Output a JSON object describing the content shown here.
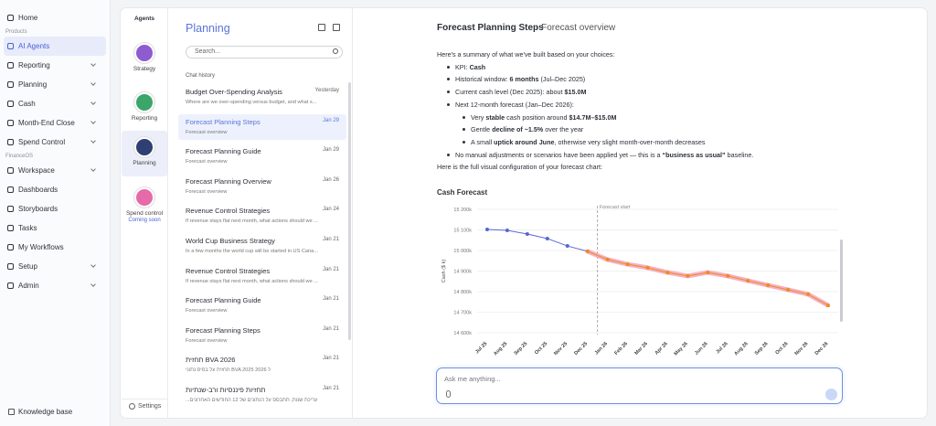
{
  "sidebar": {
    "nav": [
      {
        "label": "Home",
        "expandable": false
      },
      {
        "section": "Products"
      },
      {
        "label": "AI Agents",
        "expandable": false,
        "active": true
      },
      {
        "label": "Reporting",
        "expandable": true
      },
      {
        "label": "Planning",
        "expandable": true
      },
      {
        "label": "Cash",
        "expandable": true
      },
      {
        "label": "Month-End Close",
        "expandable": true
      },
      {
        "label": "Spend Control",
        "expandable": true
      },
      {
        "section": "FinanceOS"
      },
      {
        "label": "Workspace",
        "expandable": true
      },
      {
        "label": "Dashboards",
        "expandable": false
      },
      {
        "label": "Storyboards",
        "expandable": false
      },
      {
        "label": "Tasks",
        "expandable": false
      },
      {
        "label": "My Workflows",
        "expandable": false
      },
      {
        "label": "Setup",
        "expandable": true
      },
      {
        "label": "Admin",
        "expandable": true
      }
    ],
    "footer": "Knowledge base"
  },
  "agents": {
    "title": "Agents",
    "items": [
      {
        "label": "Strategy",
        "avatar_color": "#8e5bd0"
      },
      {
        "label": "Reporting",
        "avatar_color": "#3aa66a"
      },
      {
        "label": "Planning",
        "avatar_color": "#2f3f73",
        "active": true
      },
      {
        "label": "Spend control",
        "avatar_color": "#e66aa8",
        "badge": "Coming soon"
      }
    ],
    "settings": "Settings"
  },
  "chat_list": {
    "title": "Planning",
    "search_placeholder": "Search...",
    "section": "Chat history",
    "items": [
      {
        "title": "Budget Over-Spending Analysis",
        "date": "Yesterday",
        "preview": "Where are we over-spending versus budget, and what s..."
      },
      {
        "title": "Forecast Planning Steps",
        "date": "Jan 29",
        "preview": "Forecast overview",
        "active": true
      },
      {
        "title": "Forecast Planning Guide",
        "date": "Jan 29",
        "preview": "Forecast overview"
      },
      {
        "title": "Forecast Planning Overview",
        "date": "Jan 26",
        "preview": "Forecast overview"
      },
      {
        "title": "Revenue Control Strategies",
        "date": "Jan 24",
        "preview": "If revenue stays flat next month, what actions should we ..."
      },
      {
        "title": "World Cup Business Strategy",
        "date": "Jan 21",
        "preview": "In a few months the world cup will be started in US Cana..."
      },
      {
        "title": "Revenue Control Strategies",
        "date": "Jan 21",
        "preview": "If revenue stays flat next month, what actions should we ..."
      },
      {
        "title": "Forecast Planning Guide",
        "date": "Jan 21",
        "preview": "Forecast overview"
      },
      {
        "title": "Forecast Planning Steps",
        "date": "Jan 21",
        "preview": "Forecast overview"
      },
      {
        "title": "תחזית BVA 2026",
        "date": "Jan 21",
        "preview": "תחזית על בסיס נתוני BVA 2025 ל 2026"
      },
      {
        "title": "תחזיות פיננסיות ורב-שנתיות",
        "date": "Jan 21",
        "preview": "...עריכת שנות, תתבסס על הנתונים של 12 החודשים האחרונים"
      }
    ]
  },
  "main": {
    "title": "Forecast Planning Steps",
    "subtitle": "- Forecast overview",
    "summary": [
      {
        "level": 0,
        "runs": [
          {
            "text": "Here's a summary of what we've built based on your choices:"
          }
        ]
      },
      {
        "level": 1,
        "runs": [
          {
            "text": "KPI: "
          },
          {
            "text": "Cash",
            "bold": true
          }
        ]
      },
      {
        "level": 1,
        "runs": [
          {
            "text": "Historical window: "
          },
          {
            "text": "6 months",
            "bold": true
          },
          {
            "text": " (Jul–Dec 2025)"
          }
        ]
      },
      {
        "level": 1,
        "runs": [
          {
            "text": "Current cash level (Dec 2025): about "
          },
          {
            "text": "$15.0M",
            "bold": true
          }
        ]
      },
      {
        "level": 1,
        "runs": [
          {
            "text": "Next 12-month forecast (Jan–Dec 2026):"
          }
        ]
      },
      {
        "level": 2,
        "runs": [
          {
            "text": "Very "
          },
          {
            "text": "stable",
            "bold": true
          },
          {
            "text": " cash position around "
          },
          {
            "text": "$14.7M–$15.0M",
            "bold": true
          }
        ]
      },
      {
        "level": 2,
        "runs": [
          {
            "text": "Gentle "
          },
          {
            "text": "decline of ~1.5%",
            "bold": true
          },
          {
            "text": " over the year"
          }
        ]
      },
      {
        "level": 2,
        "runs": [
          {
            "text": "A small "
          },
          {
            "text": "uptick around June",
            "bold": true
          },
          {
            "text": ", otherwise very slight month-over-month decreases"
          }
        ]
      },
      {
        "level": 1,
        "runs": [
          {
            "text": "No manual adjustments or scenarios have been applied yet — this is a "
          },
          {
            "text": "“business as usual”",
            "bold": true
          },
          {
            "text": " baseline."
          }
        ]
      },
      {
        "level": 0,
        "runs": [
          {
            "text": "Here is the full visual configuration of your forecast chart:"
          }
        ]
      }
    ],
    "input_placeholder": "Ask me anything..."
  },
  "chart_data": {
    "type": "line",
    "title": "Cash Forecast",
    "y_label": "Cash ($ k)",
    "annotation": "Forecast start",
    "categories": [
      "Jul 25",
      "Aug 25",
      "Sep 25",
      "Oct 25",
      "Nov 25",
      "Dec 25",
      "Jan 26",
      "Feb 26",
      "Mar 26",
      "Apr 26",
      "May 26",
      "Jun 26",
      "Jul 26",
      "Aug 26",
      "Sep 26",
      "Oct 26",
      "Nov 26",
      "Dec 26"
    ],
    "series": [
      {
        "color": "#5866d4",
        "values": [
          15102,
          15098,
          15080,
          15058,
          15022,
          14996,
          null,
          null,
          null,
          null,
          null,
          null,
          null,
          null,
          null,
          null,
          null,
          null
        ]
      },
      {
        "color": "#f08a24",
        "band_color": "#f2a3b8",
        "values": [
          null,
          null,
          null,
          null,
          null,
          14996,
          14956,
          14933,
          14916,
          14893,
          14876,
          14893,
          14876,
          14853,
          14831,
          14809,
          14787,
          14733
        ]
      }
    ],
    "ylim": [
      14600,
      15200
    ],
    "yticks": [
      {
        "value": 14600,
        "label": "14 600k"
      },
      {
        "value": 14700,
        "label": "14 700k"
      },
      {
        "value": 14800,
        "label": "14 800k"
      },
      {
        "value": 14900,
        "label": "14 900k"
      },
      {
        "value": 15000,
        "label": "15 000k"
      },
      {
        "value": 15100,
        "label": "15 100k"
      },
      {
        "value": 15200,
        "label": "15 200k"
      }
    ],
    "grid": true
  }
}
